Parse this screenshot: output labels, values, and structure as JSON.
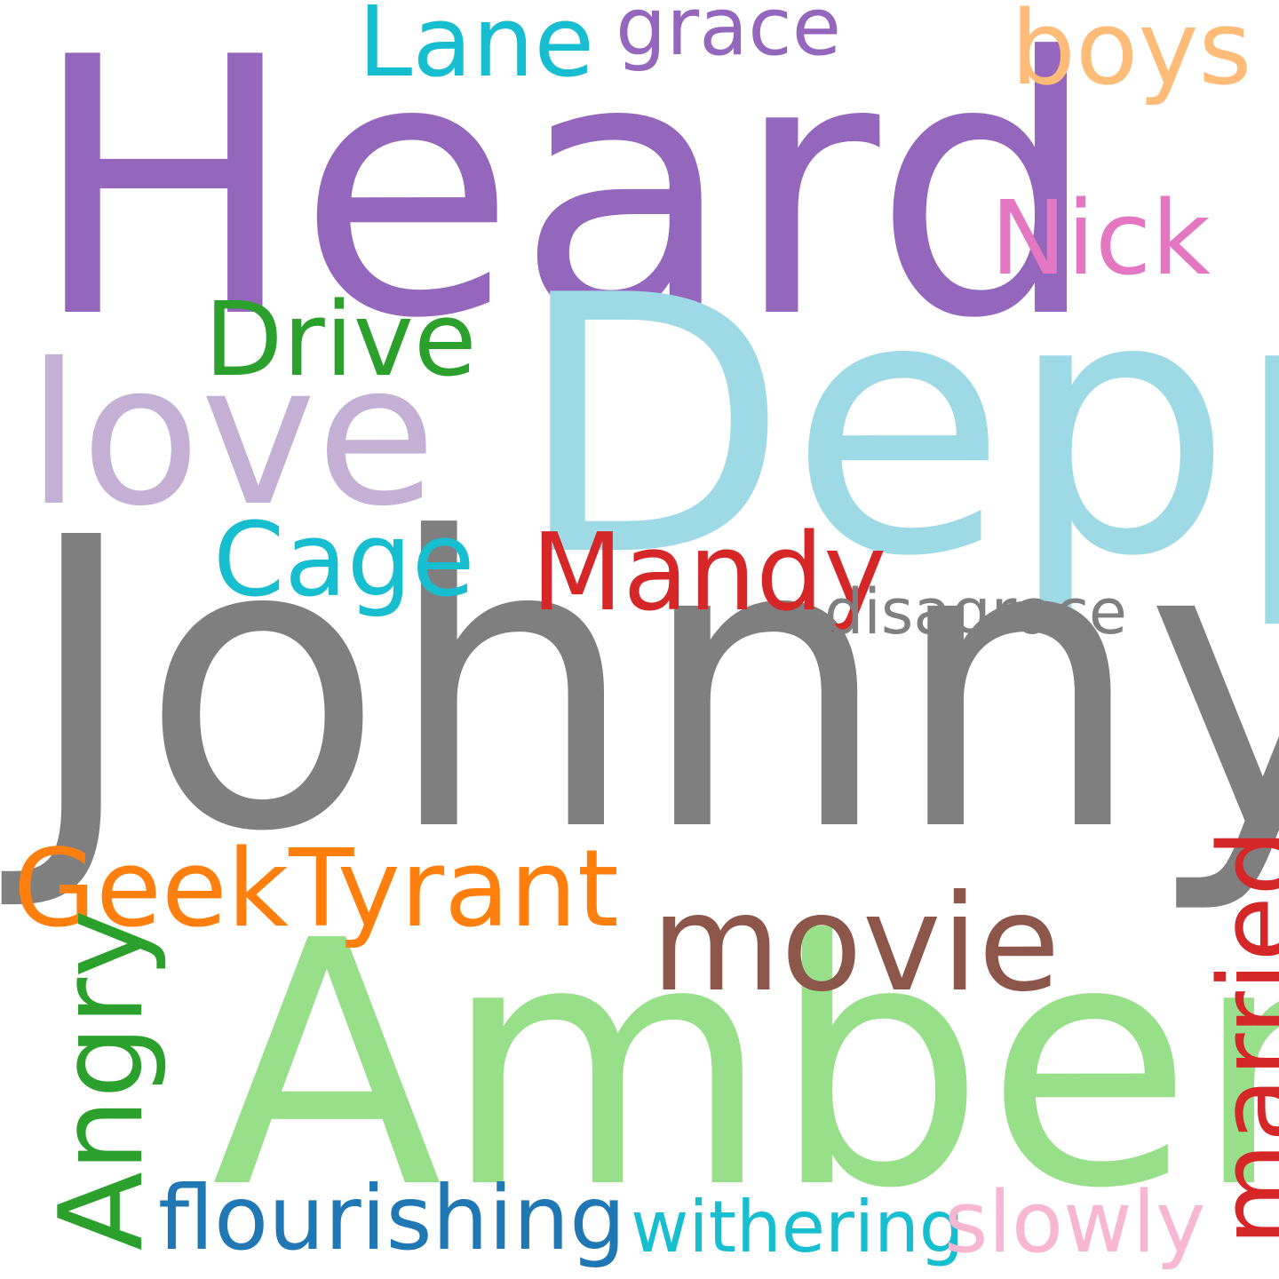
{
  "words": {
    "heard": {
      "text": "Heard",
      "color": "#9467bd"
    },
    "depp": {
      "text": "Depp",
      "color": "#9edae5"
    },
    "johnny": {
      "text": "Johnny",
      "color": "#7f7f7f"
    },
    "amber": {
      "text": "Amber",
      "color": "#98df8a"
    },
    "love": {
      "text": "love",
      "color": "#c5b0d5"
    },
    "movie": {
      "text": "movie",
      "color": "#8c564b"
    },
    "geektyrant": {
      "text": "GeekTyrant",
      "color": "#ff7f0e"
    },
    "mandy": {
      "text": "Mandy",
      "color": "#d62728"
    },
    "cage": {
      "text": "Cage",
      "color": "#17becf"
    },
    "drive": {
      "text": "Drive",
      "color": "#2ca02c"
    },
    "nick": {
      "text": "Nick",
      "color": "#e377c2"
    },
    "boys": {
      "text": "boys",
      "color": "#ffbb78"
    },
    "lane": {
      "text": "Lane",
      "color": "#17becf"
    },
    "grace": {
      "text": "grace",
      "color": "#9467bd"
    },
    "disagrace": {
      "text": "disagrace",
      "color": "#7f7f7f"
    },
    "flourishing": {
      "text": "flourishing",
      "color": "#1f77b4"
    },
    "withering": {
      "text": "withering",
      "color": "#17becf"
    },
    "slowly": {
      "text": "slowly",
      "color": "#f7b6d2"
    },
    "angry": {
      "text": "Angry",
      "color": "#2ca02c",
      "orientation": "vertical"
    },
    "married": {
      "text": "married",
      "color": "#d62728",
      "orientation": "vertical"
    }
  }
}
